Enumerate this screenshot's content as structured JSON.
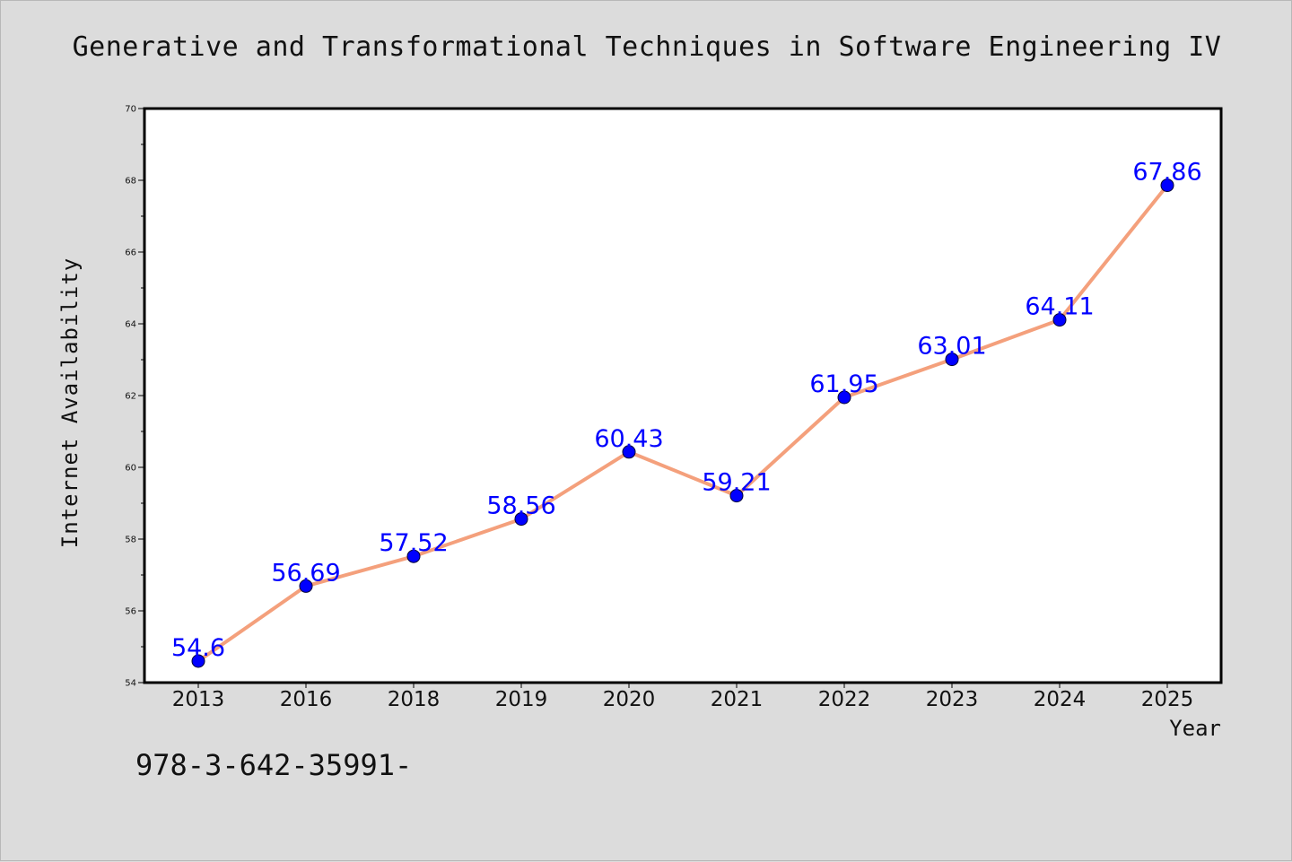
{
  "colors": {
    "background": "#dcdcdc",
    "plot_background": "#ffffff",
    "line": "#f4a07c",
    "marker": "#0000ff",
    "data_label": "#0000ff"
  },
  "footnote": "978-3-642-35991-",
  "chart_data": {
    "type": "line",
    "title": "Generative and Transformational Techniques in Software Engineering IV",
    "xlabel": "Year",
    "ylabel": "Internet Availability",
    "categories": [
      "2013",
      "2016",
      "2018",
      "2019",
      "2020",
      "2021",
      "2022",
      "2023",
      "2024",
      "2025"
    ],
    "series": [
      {
        "values": [
          54.6,
          56.69,
          57.52,
          58.56,
          60.43,
          59.21,
          61.95,
          63.01,
          64.11,
          67.86
        ],
        "labels": [
          "54.6",
          "56.69",
          "57.52",
          "58.56",
          "60.43",
          "59.21",
          "61.95",
          "63.01",
          "64.11",
          "67.86"
        ]
      }
    ],
    "ylim": [
      54,
      70
    ],
    "yticks": [
      54,
      56,
      58,
      60,
      62,
      64,
      66,
      68,
      70
    ],
    "grid": false,
    "legend": "none"
  }
}
